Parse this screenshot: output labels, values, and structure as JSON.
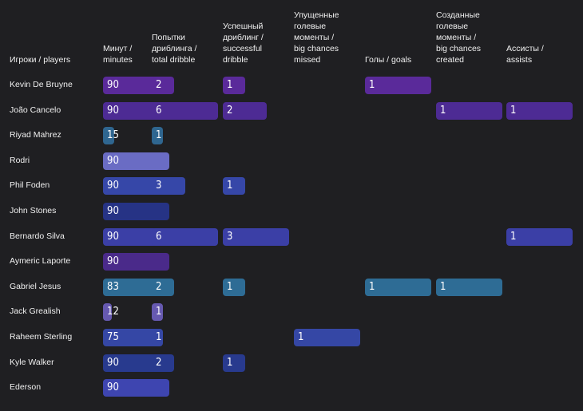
{
  "chart_data": {
    "type": "table",
    "columns": [
      {
        "key": "player",
        "label": "Игроки / players"
      },
      {
        "key": "minutes",
        "label": "Минут /\nminutes",
        "max": 90
      },
      {
        "key": "dribble_attempts",
        "label": "Попытки\nдриблинга /\ntotal dribble",
        "max": 6
      },
      {
        "key": "successful_dribble",
        "label": "Успешный\nдриблинг /\nsuccessful\ndribble",
        "max": 3
      },
      {
        "key": "big_chances_missed",
        "label": "Упущенные\nголевые\nмоменты /\nbig chances\nmissed",
        "max": 1
      },
      {
        "key": "goals",
        "label": "Голы / goals",
        "max": 1
      },
      {
        "key": "big_chances_created",
        "label": "Созданные\nголевые\nмоменты /\nbig chances\ncreated",
        "max": 1
      },
      {
        "key": "assists",
        "label": "Ассисты /\nassists",
        "max": 1
      }
    ],
    "rows": [
      {
        "player": "Kevin De Bruyne",
        "minutes": 90,
        "dribble_attempts": 2,
        "successful_dribble": 1,
        "big_chances_missed": null,
        "goals": 1,
        "big_chances_created": null,
        "assists": null,
        "color": "#5a2a9a"
      },
      {
        "player": "João Cancelo",
        "minutes": 90,
        "dribble_attempts": 6,
        "successful_dribble": 2,
        "big_chances_missed": null,
        "goals": null,
        "big_chances_created": 1,
        "assists": 1,
        "color": "#4d2b94"
      },
      {
        "player": "Riyad Mahrez",
        "minutes": 15,
        "dribble_attempts": 1,
        "successful_dribble": null,
        "big_chances_missed": null,
        "goals": null,
        "big_chances_created": null,
        "assists": null,
        "color": "#2f6690"
      },
      {
        "player": "Rodri",
        "minutes": 90,
        "dribble_attempts": null,
        "successful_dribble": null,
        "big_chances_missed": null,
        "goals": null,
        "big_chances_created": null,
        "assists": null,
        "color": "#6a6cc4"
      },
      {
        "player": "Phil Foden",
        "minutes": 90,
        "dribble_attempts": 3,
        "successful_dribble": 1,
        "big_chances_missed": null,
        "goals": null,
        "big_chances_created": null,
        "assists": null,
        "color": "#3647a8"
      },
      {
        "player": "John Stones",
        "minutes": 90,
        "dribble_attempts": null,
        "successful_dribble": null,
        "big_chances_missed": null,
        "goals": null,
        "big_chances_created": null,
        "assists": null,
        "color": "#263385"
      },
      {
        "player": "Bernardo Silva",
        "minutes": 90,
        "dribble_attempts": 6,
        "successful_dribble": 3,
        "big_chances_missed": null,
        "goals": null,
        "big_chances_created": null,
        "assists": 1,
        "color": "#3b3fa6"
      },
      {
        "player": "Aymeric Laporte",
        "minutes": 90,
        "dribble_attempts": null,
        "successful_dribble": null,
        "big_chances_missed": null,
        "goals": null,
        "big_chances_created": null,
        "assists": null,
        "color": "#4a2a8a"
      },
      {
        "player": "Gabriel Jesus",
        "minutes": 83,
        "dribble_attempts": 2,
        "successful_dribble": 1,
        "big_chances_missed": null,
        "goals": 1,
        "big_chances_created": 1,
        "assists": null,
        "color": "#2e6c95"
      },
      {
        "player": "Jack Grealish",
        "minutes": 12,
        "dribble_attempts": 1,
        "successful_dribble": null,
        "big_chances_missed": null,
        "goals": null,
        "big_chances_created": null,
        "assists": null,
        "color": "#6659b0"
      },
      {
        "player": "Raheem Sterling",
        "minutes": 75,
        "dribble_attempts": 1,
        "successful_dribble": null,
        "big_chances_missed": 1,
        "goals": null,
        "big_chances_created": null,
        "assists": null,
        "color": "#3547a5"
      },
      {
        "player": "Kyle Walker",
        "minutes": 90,
        "dribble_attempts": 2,
        "successful_dribble": 1,
        "big_chances_missed": null,
        "goals": null,
        "big_chances_created": null,
        "assists": null,
        "color": "#283a8e"
      },
      {
        "player": "Ederson",
        "minutes": 90,
        "dribble_attempts": null,
        "successful_dribble": null,
        "big_chances_missed": null,
        "goals": null,
        "big_chances_created": null,
        "assists": null,
        "color": "#3e45b0"
      }
    ]
  }
}
